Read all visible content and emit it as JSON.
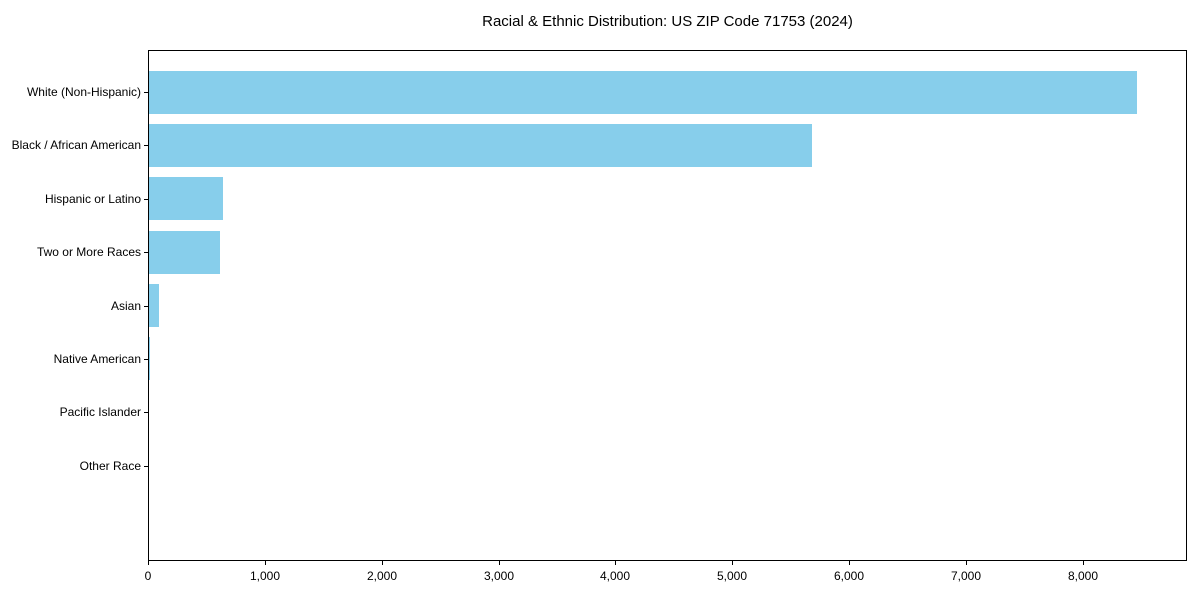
{
  "chart_data": {
    "type": "bar",
    "orientation": "horizontal",
    "title": "Racial & Ethnic Distribution: US ZIP Code 71753 (2024)",
    "categories": [
      "White (Non-Hispanic)",
      "Black / African American",
      "Hispanic or Latino",
      "Two or More Races",
      "Asian",
      "Native American",
      "Pacific Islander",
      "Other Race"
    ],
    "values": [
      8460,
      5680,
      640,
      620,
      95,
      20,
      0,
      0
    ],
    "xlabel": "",
    "ylabel": "",
    "xlim": [
      0,
      8890
    ],
    "xticks": [
      0,
      1000,
      2000,
      3000,
      4000,
      5000,
      6000,
      7000,
      8000
    ],
    "xtick_labels": [
      "0",
      "1,000",
      "2,000",
      "3,000",
      "4,000",
      "5,000",
      "6,000",
      "7,000",
      "8,000"
    ],
    "bar_color": "#87CEEB",
    "spine_color": "#000000",
    "background_color": "#ffffff",
    "grid": false,
    "legend": null
  }
}
